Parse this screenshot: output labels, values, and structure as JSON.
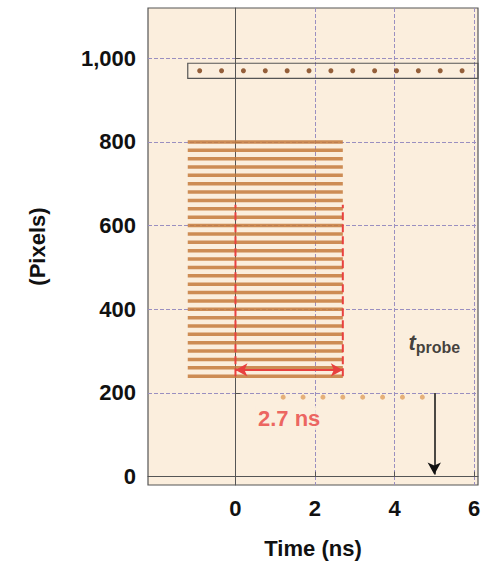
{
  "chart_data": {
    "type": "streak",
    "x_label": "Time (ns)",
    "y_label": "(Pixels)",
    "xlim": [
      -2.2,
      6.1
    ],
    "xticks": [
      0,
      2,
      4,
      6
    ],
    "ylim": [
      -20,
      1120
    ],
    "yticks": [
      0,
      200,
      400,
      600,
      800,
      1000
    ],
    "grid": true,
    "fringes": {
      "color": "#c47a3c",
      "x": [
        -1.2,
        2.7
      ],
      "y": [
        240,
        260,
        280,
        300,
        320,
        340,
        360,
        380,
        400,
        420,
        440,
        460,
        480,
        500,
        520,
        540,
        560,
        580,
        600,
        620,
        640,
        660,
        680,
        700,
        720,
        740,
        760,
        780,
        800
      ]
    },
    "fiducials": [
      {
        "color": "#7a3b12",
        "y": 970,
        "x": [
          -0.9,
          -0.35,
          0.2,
          0.75,
          1.3,
          1.85,
          2.4,
          2.95,
          3.5,
          4.05,
          4.6,
          5.15,
          5.7
        ]
      },
      {
        "color": "#e0a060",
        "y": 190,
        "x": [
          1.2,
          1.7,
          2.2,
          2.7,
          3.2,
          3.7,
          4.2,
          4.7
        ]
      }
    ],
    "markers": {
      "color": "#e8413f",
      "x": [
        0,
        2.7
      ],
      "y": [
        240,
        650
      ]
    },
    "span": {
      "color": "#e8413f",
      "from": 0,
      "to": 2.7,
      "y": 255,
      "text": "2.7 ns",
      "text_y": 140
    },
    "probe": {
      "main": "t",
      "sub": "probe",
      "x": 5,
      "y_from": 200,
      "y_to": 5,
      "text_y": 320
    }
  }
}
